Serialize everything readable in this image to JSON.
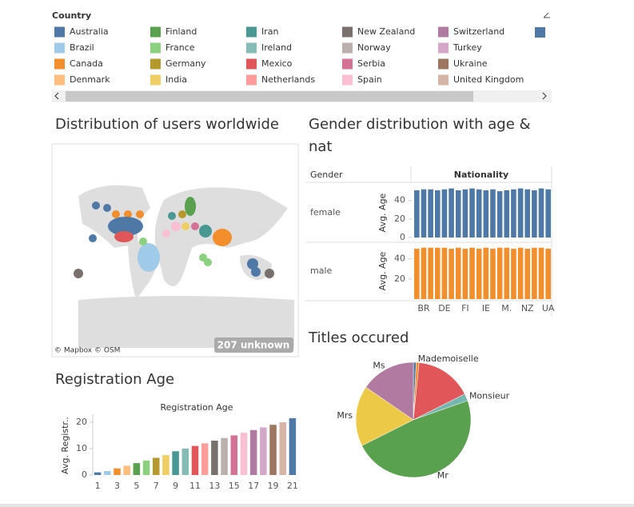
{
  "legend": {
    "title": "Country",
    "items": [
      {
        "name": "Australia",
        "color": "#4e79a7"
      },
      {
        "name": "Brazil",
        "color": "#a0cbe8"
      },
      {
        "name": "Canada",
        "color": "#f28e2b"
      },
      {
        "name": "Denmark",
        "color": "#ffbe7d"
      },
      {
        "name": "Finland",
        "color": "#59a14f"
      },
      {
        "name": "France",
        "color": "#8cd17d"
      },
      {
        "name": "Germany",
        "color": "#b6992d"
      },
      {
        "name": "India",
        "color": "#f1ce63"
      },
      {
        "name": "Iran",
        "color": "#499894"
      },
      {
        "name": "Ireland",
        "color": "#86bcb6"
      },
      {
        "name": "Mexico",
        "color": "#e15759"
      },
      {
        "name": "Netherlands",
        "color": "#ff9d9a"
      },
      {
        "name": "New Zealand",
        "color": "#79706e"
      },
      {
        "name": "Norway",
        "color": "#bab0ac"
      },
      {
        "name": "Serbia",
        "color": "#d37295"
      },
      {
        "name": "Spain",
        "color": "#fabfd2"
      },
      {
        "name": "Switzerland",
        "color": "#b07aa1"
      },
      {
        "name": "Turkey",
        "color": "#d4a6c8"
      },
      {
        "name": "Ukraine",
        "color": "#9d7660"
      },
      {
        "name": "United Kingdom",
        "color": "#d7b5a6"
      }
    ]
  },
  "map": {
    "title": "Distribution of users worldwide",
    "attribution": "© Mapbox © OSM",
    "unknown": "207 unknown"
  },
  "chart_data": [
    {
      "type": "bar",
      "title": "Gender distribution with age & nat",
      "row_header": "Gender",
      "column_header": "Nationality",
      "y_label": "Avg. Age",
      "categories": [
        null,
        "BR",
        null,
        null,
        "DE",
        null,
        null,
        "FI",
        null,
        null,
        "IE",
        null,
        null,
        "M.",
        null,
        null,
        "NZ",
        null,
        null,
        "UA"
      ],
      "series": [
        {
          "name": "female",
          "color": "#4e79a7",
          "ylim": [
            0,
            57
          ],
          "yticks": [
            0,
            20,
            40
          ],
          "values": [
            51,
            52,
            52,
            51,
            52,
            53,
            51,
            52,
            53,
            52,
            51,
            52,
            50,
            51,
            52,
            53,
            52,
            51,
            53,
            52
          ]
        },
        {
          "name": "male",
          "color": "#f28e2b",
          "ylim": [
            0,
            54
          ],
          "yticks": [
            20,
            40
          ],
          "values": [
            50,
            51,
            51,
            51,
            51,
            50,
            51,
            50,
            51,
            50,
            51,
            50,
            51,
            51,
            50,
            51,
            50,
            51,
            51,
            50
          ]
        }
      ]
    },
    {
      "type": "pie",
      "title": "Titles occured",
      "categories": [
        null,
        "Mademoiselle",
        null,
        "Monsieur",
        "Mr",
        "Mrs",
        "Ms"
      ],
      "values": [
        0.8,
        0.8,
        16,
        2,
        48,
        17,
        15.4
      ],
      "colors": [
        "#4e79a7",
        "#f28e2b",
        "#e15759",
        "#76b7b2",
        "#59a14f",
        "#edc948",
        "#b07aa1"
      ]
    },
    {
      "type": "bar",
      "title": "Registration Age",
      "subtitle": "Registration Age",
      "y_label": "Avg. Registr..",
      "categories": [
        1,
        null,
        3,
        null,
        5,
        null,
        7,
        null,
        9,
        null,
        11,
        null,
        13,
        null,
        15,
        null,
        17,
        null,
        19,
        null,
        21
      ],
      "values": [
        1,
        1.5,
        2.5,
        3.5,
        4.5,
        5.5,
        6.5,
        7.5,
        9,
        10,
        11,
        12,
        13,
        14,
        15,
        16,
        17,
        18,
        19,
        20,
        21.5
      ],
      "colors": [
        "#4e79a7",
        "#a0cbe8",
        "#f28e2b",
        "#ffbe7d",
        "#59a14f",
        "#8cd17d",
        "#b6992d",
        "#f1ce63",
        "#499894",
        "#86bcb6",
        "#e15759",
        "#ff9d9a",
        "#79706e",
        "#bab0ac",
        "#d37295",
        "#fabfd2",
        "#b07aa1",
        "#d4a6c8",
        "#9d7660",
        "#d7b5a6",
        "#4e79a7"
      ],
      "ylim": [
        0,
        23
      ],
      "yticks": [
        0,
        10,
        20
      ]
    }
  ]
}
